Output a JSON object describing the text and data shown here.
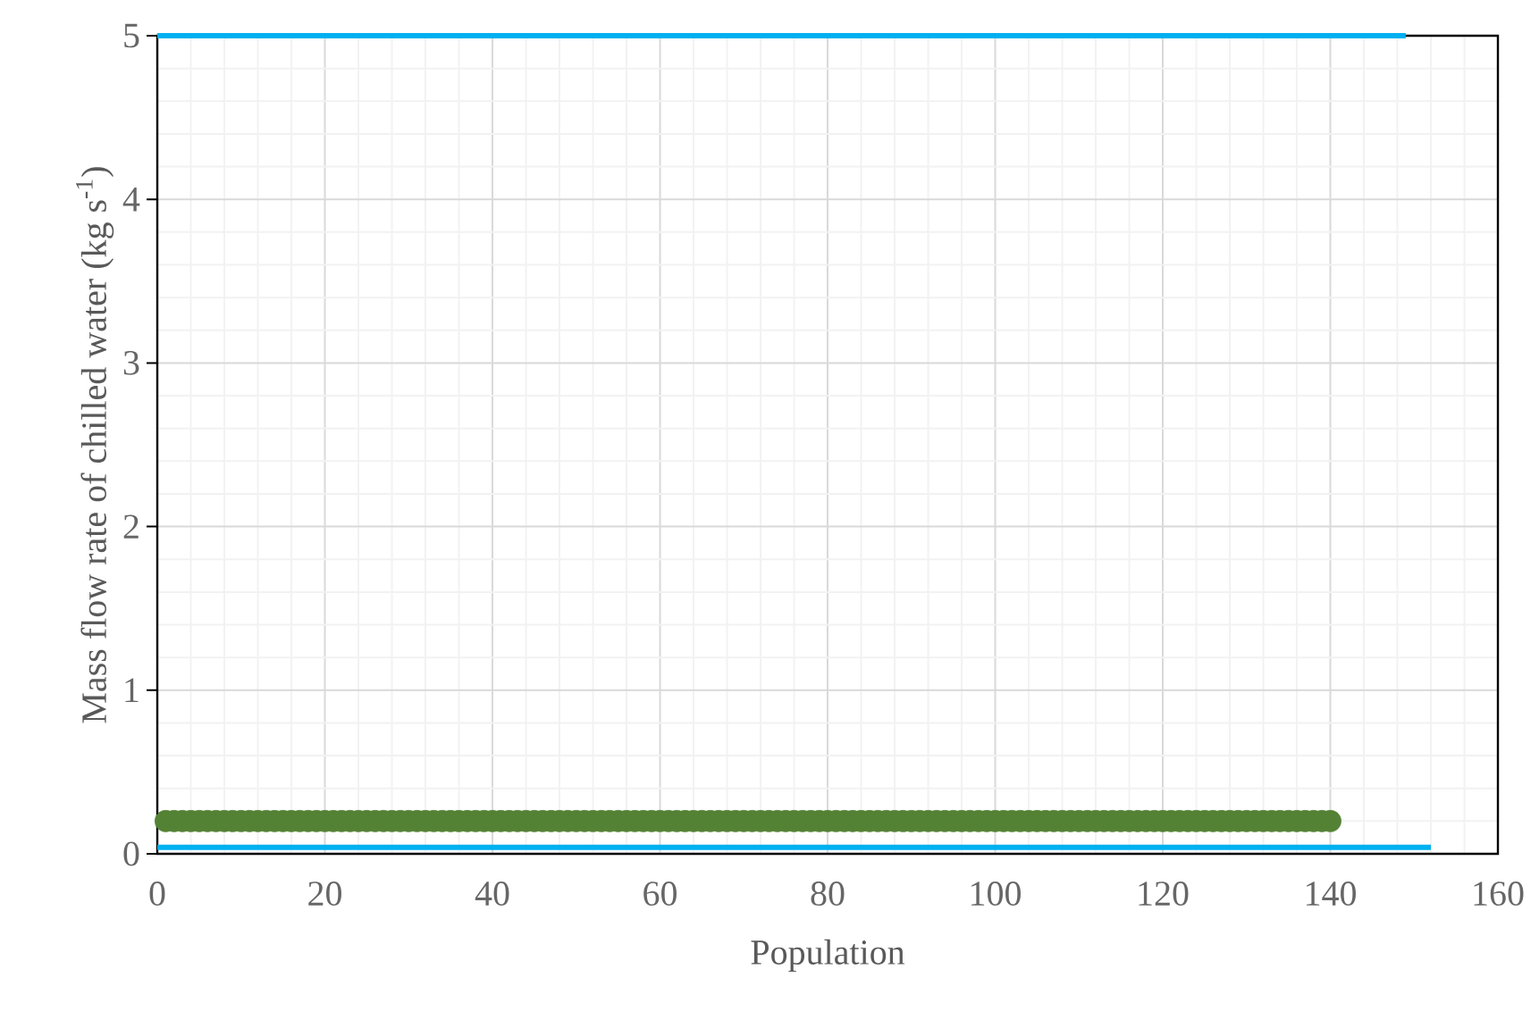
{
  "chart_data": {
    "type": "scatter",
    "xlabel": "Population",
    "ylabel": "Mass flow rate of chilled water  (kg s$^{-1}$)",
    "xlim": [
      0,
      160
    ],
    "ylim": [
      0,
      5
    ],
    "xticks": [
      0,
      20,
      40,
      60,
      80,
      100,
      120,
      140,
      160
    ],
    "yticks": [
      0,
      1,
      2,
      3,
      4,
      5
    ],
    "grid": true,
    "series": [
      {
        "type": "line",
        "color": "#00b0f0",
        "marker": "none",
        "x": [
          0,
          149
        ],
        "values": [
          5,
          5
        ]
      },
      {
        "type": "line",
        "color": "#00b0f0",
        "marker": "none",
        "x": [
          0,
          152
        ],
        "values": [
          0.04,
          0.04
        ]
      },
      {
        "color": "#548235",
        "marker": "circle",
        "x": [
          1,
          2,
          3,
          4,
          5,
          6,
          7,
          8,
          9,
          10,
          11,
          12,
          13,
          14,
          15,
          16,
          17,
          18,
          19,
          20,
          21,
          22,
          23,
          24,
          25,
          26,
          27,
          28,
          29,
          30,
          31,
          32,
          33,
          34,
          35,
          36,
          37,
          38,
          39,
          40,
          41,
          42,
          43,
          44,
          45,
          46,
          47,
          48,
          49,
          50,
          51,
          52,
          53,
          54,
          55,
          56,
          57,
          58,
          59,
          60,
          61,
          62,
          63,
          64,
          65,
          66,
          67,
          68,
          69,
          70,
          71,
          72,
          73,
          74,
          75,
          76,
          77,
          78,
          79,
          80,
          81,
          82,
          83,
          84,
          85,
          86,
          87,
          88,
          89,
          90,
          91,
          92,
          93,
          94,
          95,
          96,
          97,
          98,
          99,
          100,
          101,
          102,
          103,
          104,
          105,
          106,
          107,
          108,
          109,
          110,
          111,
          112,
          113,
          114,
          115,
          116,
          117,
          118,
          119,
          120,
          121,
          122,
          123,
          124,
          125,
          126,
          127,
          128,
          129,
          130,
          131,
          132,
          133,
          134,
          135,
          136,
          137,
          138,
          139,
          140
        ],
        "values": [
          0.2,
          0.2,
          0.2,
          0.2,
          0.2,
          0.2,
          0.2,
          0.2,
          0.2,
          0.2,
          0.2,
          0.2,
          0.2,
          0.2,
          0.2,
          0.2,
          0.2,
          0.2,
          0.2,
          0.2,
          0.2,
          0.2,
          0.2,
          0.2,
          0.2,
          0.2,
          0.2,
          0.2,
          0.2,
          0.2,
          0.2,
          0.2,
          0.2,
          0.2,
          0.2,
          0.2,
          0.2,
          0.2,
          0.2,
          0.2,
          0.2,
          0.2,
          0.2,
          0.2,
          0.2,
          0.2,
          0.2,
          0.2,
          0.2,
          0.2,
          0.2,
          0.2,
          0.2,
          0.2,
          0.2,
          0.2,
          0.2,
          0.2,
          0.2,
          0.2,
          0.2,
          0.2,
          0.2,
          0.2,
          0.2,
          0.2,
          0.2,
          0.2,
          0.2,
          0.2,
          0.2,
          0.2,
          0.2,
          0.2,
          0.2,
          0.2,
          0.2,
          0.2,
          0.2,
          0.2,
          0.2,
          0.2,
          0.2,
          0.2,
          0.2,
          0.2,
          0.2,
          0.2,
          0.2,
          0.2,
          0.2,
          0.2,
          0.2,
          0.2,
          0.2,
          0.2,
          0.2,
          0.2,
          0.2,
          0.2,
          0.2,
          0.2,
          0.2,
          0.2,
          0.2,
          0.2,
          0.2,
          0.2,
          0.2,
          0.2,
          0.2,
          0.2,
          0.2,
          0.2,
          0.2,
          0.2,
          0.2,
          0.2,
          0.2,
          0.2,
          0.2,
          0.2,
          0.2,
          0.2,
          0.2,
          0.2,
          0.2,
          0.2,
          0.2,
          0.2,
          0.2,
          0.2,
          0.2,
          0.2,
          0.2,
          0.2,
          0.2,
          0.2,
          0.2,
          0.2
        ]
      }
    ]
  }
}
